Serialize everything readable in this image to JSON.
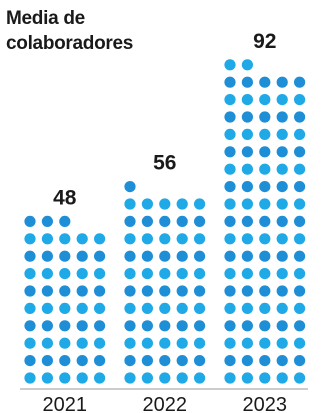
{
  "chart_data": {
    "type": "bar",
    "title": "Media de colaboradores",
    "categories": [
      "2021",
      "2022",
      "2023"
    ],
    "values": [
      48,
      56,
      92
    ],
    "xlabel": "",
    "ylabel": "",
    "grid": false,
    "legend": "none",
    "dots_per_row": 5,
    "colors": {
      "dot_light": "#1fa9e6",
      "dot_dark": "#1e8fd6",
      "text": "#1a1a1a"
    }
  }
}
